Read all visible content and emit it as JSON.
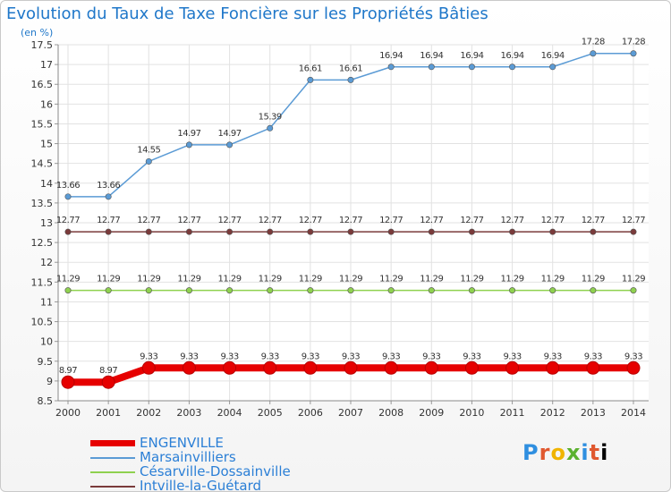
{
  "title": "Evolution du Taux de Taxe Foncière sur les Propriétés Bâties",
  "subtitle": "(en %)",
  "logo_text": "Proxiti",
  "chart_data": {
    "type": "line",
    "x": [
      2000,
      2001,
      2002,
      2003,
      2004,
      2005,
      2006,
      2007,
      2008,
      2009,
      2010,
      2011,
      2012,
      2013,
      2014
    ],
    "ylim": [
      8.5,
      17.5
    ],
    "yticks": [
      8.5,
      9,
      9.5,
      10,
      10.5,
      11,
      11.5,
      12,
      12.5,
      13,
      13.5,
      14,
      14.5,
      15,
      15.5,
      16,
      16.5,
      17,
      17.5
    ],
    "grid": true,
    "legend_position": "bottom-left",
    "series": [
      {
        "name": "ENGENVILLE",
        "color": "#e60000",
        "values": [
          8.97,
          8.97,
          9.33,
          9.33,
          9.33,
          9.33,
          9.33,
          9.33,
          9.33,
          9.33,
          9.33,
          9.33,
          9.33,
          9.33,
          9.33
        ],
        "labels": [
          "8.97",
          "8.97",
          "9.33",
          "9.33",
          "9.33",
          "9.33",
          "9.33",
          "9.33",
          "9.33",
          "9.33",
          "9.33",
          "9.33",
          "9.33",
          "9.33",
          "9.33"
        ]
      },
      {
        "name": "Marsainvilliers",
        "color": "#5b9bd5",
        "values": [
          13.66,
          13.66,
          14.55,
          14.97,
          14.97,
          15.39,
          16.61,
          16.61,
          16.94,
          16.94,
          16.94,
          16.94,
          16.94,
          17.28,
          17.28
        ],
        "labels": [
          "13.66",
          "13.66",
          "14.55",
          "14.97",
          "14.97",
          "15.39",
          "16.61",
          "16.61",
          "16.94",
          "16.94",
          "16.94",
          "16.94",
          "16.94",
          "17.28",
          "17.28"
        ]
      },
      {
        "name": "Césarville-Dossainville",
        "color": "#8fd14f",
        "values": [
          11.29,
          11.29,
          11.29,
          11.29,
          11.29,
          11.29,
          11.29,
          11.29,
          11.29,
          11.29,
          11.29,
          11.29,
          11.29,
          11.29,
          11.29
        ],
        "labels": [
          "11.29",
          "11.29",
          "11.29",
          "11.29",
          "11.29",
          "11.29",
          "11.29",
          "11.29",
          "11.29",
          "11.29",
          "11.29",
          "11.29",
          "11.29",
          "11.29",
          "11.29"
        ]
      },
      {
        "name": "Intville-la-Guétard",
        "color": "#7a3b3b",
        "values": [
          12.77,
          12.77,
          12.77,
          12.77,
          12.77,
          12.77,
          12.77,
          12.77,
          12.77,
          12.77,
          12.77,
          12.77,
          12.77,
          12.77,
          12.77
        ],
        "labels": [
          "12.77",
          "12.77",
          "12.77",
          "12.77",
          "12.77",
          "12.77",
          "12.77",
          "12.77",
          "12.77",
          "12.77",
          "12.77",
          "12.77",
          "12.77",
          "12.77",
          "12.77"
        ]
      }
    ]
  }
}
